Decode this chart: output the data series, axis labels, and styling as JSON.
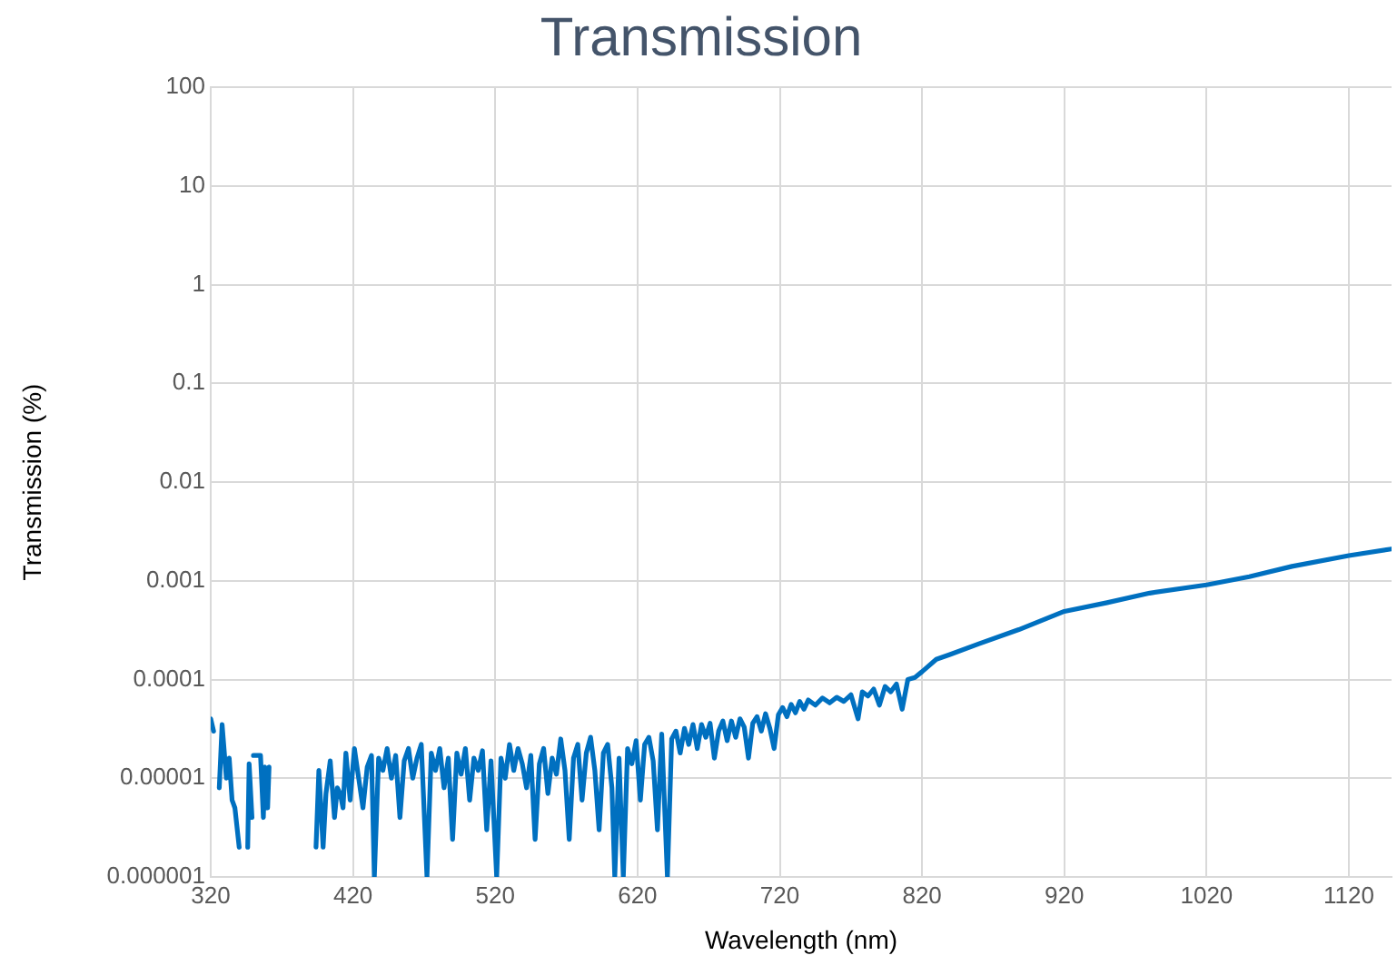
{
  "chart_data": {
    "type": "line",
    "title": "Transmission",
    "xlabel": "Wavelength (nm)",
    "ylabel": "Transmission (%)",
    "log": "y",
    "grid": true,
    "legend": false,
    "marker": "none",
    "line_style": "solid",
    "xlim": [
      320,
      1150
    ],
    "xticks": [
      320,
      420,
      520,
      620,
      720,
      820,
      920,
      1020,
      1120
    ],
    "ylim": [
      1e-06,
      100
    ],
    "yticks": [
      {
        "value": 1e-06,
        "label": "0.000001"
      },
      {
        "value": 1e-05,
        "label": "0.00001"
      },
      {
        "value": 0.0001,
        "label": "0.0001"
      },
      {
        "value": 0.001,
        "label": "0.001"
      },
      {
        "value": 0.01,
        "label": "0.01"
      },
      {
        "value": 0.1,
        "label": "0.1"
      },
      {
        "value": 1,
        "label": "1"
      },
      {
        "value": 10,
        "label": "10"
      },
      {
        "value": 100,
        "label": "100"
      }
    ],
    "x": [
      320,
      322,
      324,
      326,
      328,
      331,
      333,
      335,
      337,
      340,
      342,
      346,
      347,
      349,
      349.5,
      350,
      355,
      357,
      358,
      360,
      361,
      363,
      394,
      396,
      399,
      401,
      404,
      407,
      409,
      411,
      413,
      415,
      418,
      421,
      424,
      427,
      430,
      433,
      435,
      438,
      441,
      444,
      447,
      450,
      453,
      456,
      459,
      462,
      465,
      468,
      472,
      475,
      478,
      481,
      484,
      487,
      490,
      493,
      496,
      499,
      502,
      505,
      508,
      511,
      514,
      517,
      521,
      524,
      527,
      530,
      533,
      536,
      539,
      542,
      545,
      548,
      551,
      554,
      557,
      560,
      563,
      566,
      569,
      572,
      575,
      578,
      581,
      584,
      587,
      590,
      593,
      596,
      599,
      602,
      604,
      607,
      610,
      613,
      616,
      619,
      622,
      625,
      628,
      631,
      634,
      637,
      641,
      644,
      647,
      650,
      653,
      656,
      659,
      662,
      665,
      668,
      671,
      674,
      677,
      680,
      683,
      686,
      689,
      692,
      695,
      698,
      701,
      704,
      707,
      710,
      713,
      716,
      719,
      722,
      725,
      728,
      731,
      734,
      737,
      740,
      745,
      750,
      755,
      760,
      765,
      770,
      775,
      778,
      782,
      786,
      790,
      794,
      798,
      802,
      806,
      810,
      815,
      820,
      830,
      840,
      860,
      888,
      920,
      950,
      980,
      1020,
      1050,
      1080,
      1120,
      1150
    ],
    "series": [
      {
        "color": "#0070c0",
        "values": [
          4e-05,
          3e-05,
          null,
          8e-06,
          3.5e-05,
          1e-05,
          1.6e-05,
          6e-06,
          5e-06,
          2e-06,
          null,
          2e-06,
          1.4e-05,
          4e-06,
          null,
          1.7e-05,
          1.7e-05,
          4e-06,
          1.3e-05,
          5e-06,
          1.3e-05,
          null,
          2e-06,
          1.2e-05,
          2e-06,
          7e-06,
          1.5e-05,
          4e-06,
          8e-06,
          7e-06,
          5e-06,
          1.8e-05,
          6e-06,
          2e-05,
          1e-05,
          5e-06,
          1.3e-05,
          1.7e-05,
          1e-06,
          1.6e-05,
          1.2e-05,
          2e-05,
          1e-05,
          1.7e-05,
          4e-06,
          1.5e-05,
          2e-05,
          1e-05,
          1.6e-05,
          2.2e-05,
          1e-06,
          1.8e-05,
          1.2e-05,
          2e-05,
          8e-06,
          1.6e-05,
          2.4e-06,
          1.8e-05,
          1.1e-05,
          2e-05,
          6e-06,
          1.6e-05,
          1.2e-05,
          1.9e-05,
          3e-06,
          1.5e-05,
          1e-06,
          1.6e-05,
          1e-05,
          2.2e-05,
          1.2e-05,
          2e-05,
          1.4e-05,
          8e-06,
          1.7e-05,
          2.4e-06,
          1.4e-05,
          2e-05,
          7e-06,
          1.6e-05,
          1.1e-05,
          2.5e-05,
          1.2e-05,
          2.4e-06,
          1.6e-05,
          2.2e-05,
          6e-06,
          1.8e-05,
          2.6e-05,
          1.2e-05,
          3e-06,
          1.8e-05,
          2.2e-05,
          8e-06,
          1e-06,
          1.6e-05,
          1e-06,
          2e-05,
          1.4e-05,
          2.4e-05,
          6e-06,
          2.2e-05,
          2.6e-05,
          1.5e-05,
          3e-06,
          2.8e-05,
          1e-06,
          2.5e-05,
          3e-05,
          1.8e-05,
          3.2e-05,
          2.2e-05,
          3.5e-05,
          2e-05,
          3.5e-05,
          2.6e-05,
          3.6e-05,
          1.6e-05,
          3e-05,
          3.8e-05,
          2.4e-05,
          3.8e-05,
          2.6e-05,
          4e-05,
          3.3e-05,
          1.6e-05,
          3.6e-05,
          4.2e-05,
          3e-05,
          4.5e-05,
          3.2e-05,
          2e-05,
          4.4e-05,
          5.2e-05,
          4.2e-05,
          5.6e-05,
          4.6e-05,
          6e-05,
          5e-05,
          6.2e-05,
          5.5e-05,
          6.5e-05,
          5.8e-05,
          6.6e-05,
          6e-05,
          7e-05,
          4e-05,
          7.5e-05,
          6.8e-05,
          8e-05,
          5.5e-05,
          8.5e-05,
          7.5e-05,
          9e-05,
          5e-05,
          0.0001,
          0.000105,
          0.00012,
          0.00016,
          0.00018,
          0.00023,
          0.00032,
          0.00049,
          0.0006,
          0.00075,
          0.00091,
          0.0011,
          0.0014,
          0.0018,
          0.0021
        ]
      }
    ]
  }
}
